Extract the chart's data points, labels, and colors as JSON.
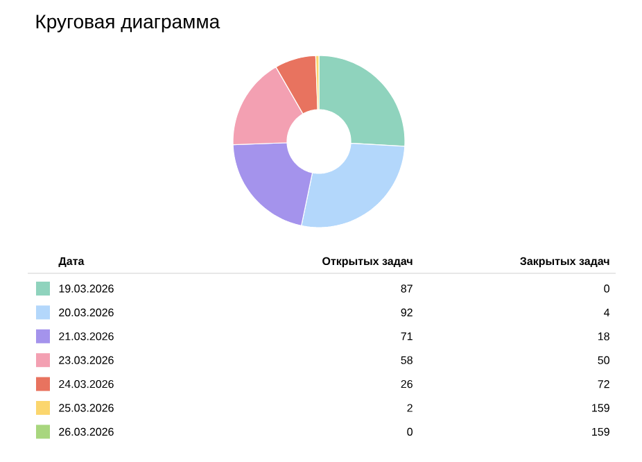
{
  "chart_data": [
    {
      "type": "donut",
      "title": "Круговая диаграмма",
      "legend_title": "Дата",
      "legend": "bottom",
      "categories": [
        "19.03.2026",
        "20.03.2026",
        "21.03.2026",
        "23.03.2026",
        "24.03.2026",
        "25.03.2026",
        "26.03.2026"
      ],
      "colors": [
        "#8fd3bd",
        "#b3d7fb",
        "#a493ec",
        "#f3a0b2",
        "#e8735f",
        "#fbd66e",
        "#a8d67e"
      ],
      "series": [
        {
          "name": "Открытых задач",
          "values": [
            87,
            92,
            71,
            58,
            26,
            2,
            0
          ],
          "value_labels": [
            "87",
            "92",
            "71",
            "58",
            "26",
            "2",
            "0"
          ]
        }
      ]
    },
    {
      "type": "other",
      "title": "Закрытых задач",
      "annotations": [
        "0",
        "4",
        "18",
        "50",
        "72",
        "159",
        "159"
      ]
    }
  ]
}
